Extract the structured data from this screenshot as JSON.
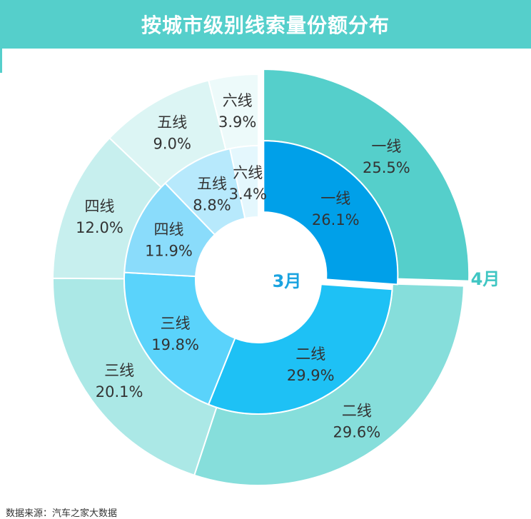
{
  "title": "按城市级别线索量份额分布",
  "colors": {
    "title_bar": "#55cfcb",
    "title_text": "#ffffff",
    "label_3": "#1aa3e0",
    "label_4": "#3fc6c3"
  },
  "source_note": "数据来源：汽车之家大数据",
  "chart_data": {
    "type": "pie",
    "subtype": "nested-donut",
    "categories": [
      "一线",
      "二线",
      "三线",
      "四线",
      "五线",
      "六线"
    ],
    "series": [
      {
        "name": "3月",
        "ring": "inner",
        "values": [
          26.1,
          29.9,
          19.8,
          11.9,
          8.8,
          3.4
        ],
        "labels": [
          "26.1%",
          "29.9%",
          "19.8%",
          "11.9%",
          "8.8%",
          "3.4%"
        ],
        "colors": [
          "#00a0e9",
          "#1ec1f5",
          "#5ad3fb",
          "#8adcfb",
          "#b7e9fc",
          "#e4f7fd"
        ]
      },
      {
        "name": "4月",
        "ring": "outer",
        "values": [
          25.5,
          29.6,
          20.1,
          12.0,
          9.0,
          3.9
        ],
        "labels": [
          "25.5%",
          "29.6%",
          "20.1%",
          "12.0%",
          "9.0%",
          "3.9%"
        ],
        "colors": [
          "#55cfcb",
          "#86dedb",
          "#abe8e6",
          "#c7efee",
          "#dcf5f4",
          "#edfafa"
        ]
      }
    ]
  }
}
